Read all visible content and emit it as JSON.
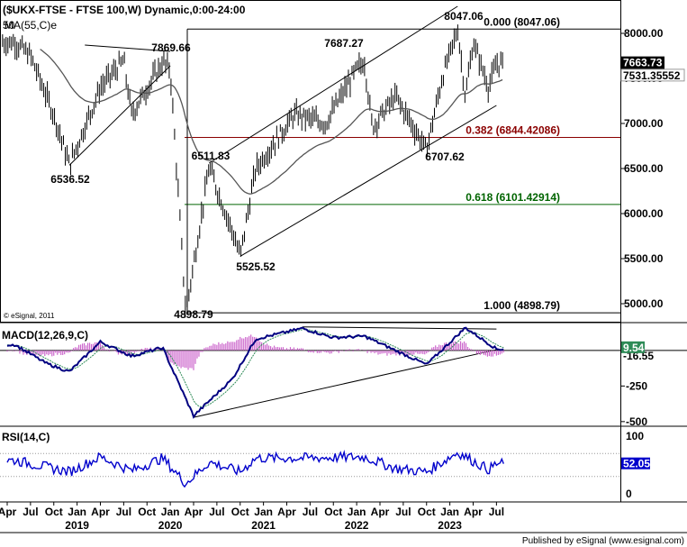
{
  "chart_data": [
    {
      "type": "line",
      "panel": "price",
      "title": "($UKX-FTSE - FTSE 100,W) Dynamic,0:00-24:00",
      "series": [
        {
          "name": "",
          "style": "bars",
          "color": "#000000"
        },
        {
          "name": "MA(55,C)e",
          "style": "line",
          "color": "#555555"
        }
      ],
      "ylim": [
        4800,
        8350
      ],
      "y_ticks": [
        "8000.00",
        "7500.00",
        "7000.00",
        "6500.00",
        "6000.00",
        "5500.00",
        "5000.00"
      ],
      "last_price": "7663.73",
      "last_ma": "7531.35552",
      "truncated_label": "50",
      "key_points": [
        {
          "date": "2018-05",
          "value": 7900
        },
        {
          "date": "2018-07",
          "value": 7750
        },
        {
          "date": "2018-10",
          "value": 7100
        },
        {
          "date": "2018-12",
          "value": 6536.52
        },
        {
          "date": "2019-04",
          "value": 7400
        },
        {
          "date": "2019-07",
          "value": 7700
        },
        {
          "date": "2019-08",
          "value": 7100
        },
        {
          "date": "2019-12",
          "value": 7680
        },
        {
          "date": "2020-01",
          "value": 7600
        },
        {
          "date": "2020-03",
          "value": 4898.79
        },
        {
          "date": "2020-06",
          "value": 6511.83
        },
        {
          "date": "2020-09",
          "value": 5800
        },
        {
          "date": "2020-10",
          "value": 5525.52
        },
        {
          "date": "2020-12",
          "value": 6500
        },
        {
          "date": "2021-05",
          "value": 7100
        },
        {
          "date": "2021-09",
          "value": 7000
        },
        {
          "date": "2022-01",
          "value": 7600
        },
        {
          "date": "2022-02",
          "value": 7687.27
        },
        {
          "date": "2022-03",
          "value": 6960
        },
        {
          "date": "2022-06",
          "value": 7300
        },
        {
          "date": "2022-10",
          "value": 6707.62
        },
        {
          "date": "2022-12",
          "value": 7500
        },
        {
          "date": "2023-02",
          "value": 8047.06
        },
        {
          "date": "2023-03",
          "value": 7300
        },
        {
          "date": "2023-04",
          "value": 7900
        },
        {
          "date": "2023-06",
          "value": 7400
        },
        {
          "date": "2023-07",
          "value": 7663.73
        }
      ],
      "annotations": [
        {
          "text": "7869.66"
        },
        {
          "text": "6536.52"
        },
        {
          "text": "6511.83"
        },
        {
          "text": "5525.52"
        },
        {
          "text": "4898.79"
        },
        {
          "text": "7687.27"
        },
        {
          "text": "8047.06"
        },
        {
          "text": "6707.62"
        }
      ],
      "retracements": [
        {
          "text": "0.000 (8047.06)",
          "value": 8047.06,
          "color": "#000000"
        },
        {
          "text": "0.382 (6844.42086)",
          "value": 6844.42086,
          "color": "#8B0000"
        },
        {
          "text": "0.618 (6101.42914)",
          "value": 6101.42914,
          "color": "#006400"
        },
        {
          "text": "1.000 (4898.79)",
          "value": 4898.79,
          "color": "#000000"
        }
      ],
      "trendlines": [
        {
          "from": {
            "date": "2018-12",
            "value": 6536.52
          },
          "to": {
            "date": "2020-01",
            "value": 7640
          }
        },
        {
          "from": {
            "date": "2019-02",
            "value": 7870
          },
          "to": {
            "date": "2020-01",
            "value": 7800
          }
        },
        {
          "from": {
            "date": "2020-06",
            "value": 6560
          },
          "to": {
            "date": "2023-02",
            "value": 8300
          }
        },
        {
          "from": {
            "date": "2020-10",
            "value": 5525.52
          },
          "to": {
            "date": "2023-07",
            "value": 7200
          }
        }
      ],
      "copyright": "© eSignal, 2011"
    },
    {
      "type": "line",
      "panel": "macd",
      "title": "MACD(12,26,9,C)",
      "series": [
        {
          "name": "",
          "style": "line",
          "color": "#000080"
        },
        {
          "name": "",
          "style": "line",
          "color": "#2e8b57"
        },
        {
          "name": "",
          "style": "histogram",
          "color": "#cc66cc"
        }
      ],
      "ylim": [
        -520,
        170
      ],
      "y_ticks": [
        "-250",
        "-500"
      ],
      "last_value": "9.54",
      "last_value_2": "-16.55",
      "key_points": [
        {
          "date": "2018-05",
          "value": 40
        },
        {
          "date": "2018-09",
          "value": -90
        },
        {
          "date": "2018-12",
          "value": -150
        },
        {
          "date": "2019-04",
          "value": 60
        },
        {
          "date": "2019-08",
          "value": -40
        },
        {
          "date": "2019-12",
          "value": 20
        },
        {
          "date": "2020-04",
          "value": -460
        },
        {
          "date": "2020-09",
          "value": -200
        },
        {
          "date": "2020-12",
          "value": 80
        },
        {
          "date": "2021-06",
          "value": 155
        },
        {
          "date": "2021-10",
          "value": 90
        },
        {
          "date": "2022-02",
          "value": 100
        },
        {
          "date": "2022-10",
          "value": -100
        },
        {
          "date": "2023-03",
          "value": 160
        },
        {
          "date": "2023-07",
          "value": 10
        }
      ]
    },
    {
      "type": "line",
      "panel": "rsi",
      "title": "RSI(14,C)",
      "series": [
        {
          "name": "",
          "style": "line",
          "color": "#0000cc"
        }
      ],
      "ylim": [
        0,
        100
      ],
      "y_ticks": [
        "100",
        "50",
        "0"
      ],
      "last_value": "52.05",
      "key_points": [
        {
          "date": "2018-05",
          "value": 58
        },
        {
          "date": "2018-12",
          "value": 38
        },
        {
          "date": "2019-04",
          "value": 64
        },
        {
          "date": "2019-08",
          "value": 40
        },
        {
          "date": "2019-12",
          "value": 62
        },
        {
          "date": "2020-03",
          "value": 18
        },
        {
          "date": "2020-06",
          "value": 55
        },
        {
          "date": "2020-10",
          "value": 38
        },
        {
          "date": "2020-12",
          "value": 62
        },
        {
          "date": "2021-06",
          "value": 62
        },
        {
          "date": "2022-02",
          "value": 64
        },
        {
          "date": "2022-06",
          "value": 44
        },
        {
          "date": "2022-10",
          "value": 38
        },
        {
          "date": "2023-02",
          "value": 72
        },
        {
          "date": "2023-06",
          "value": 42
        },
        {
          "date": "2023-07",
          "value": 52
        }
      ]
    }
  ],
  "x_axis": {
    "month_labels": [
      "Apr",
      "Jul",
      "Oct",
      "Jan",
      "Apr",
      "Jul",
      "Oct",
      "Jan",
      "Apr",
      "Jul",
      "Oct",
      "Jan",
      "Apr",
      "Jul",
      "Oct",
      "Jan",
      "Apr",
      "Jul",
      "Oct",
      "Jan",
      "Apr",
      "Jul"
    ],
    "years": [
      "2019",
      "2020",
      "2021",
      "2022",
      "2023"
    ]
  },
  "footer": "Published by eSignal (www.esignal.com)",
  "colors": {
    "price_bars": "#000000",
    "ma": "#555555",
    "macd": "#000080",
    "signal": "#2e8b57",
    "hist": "#cc66cc",
    "rsi": "#0000cc"
  }
}
